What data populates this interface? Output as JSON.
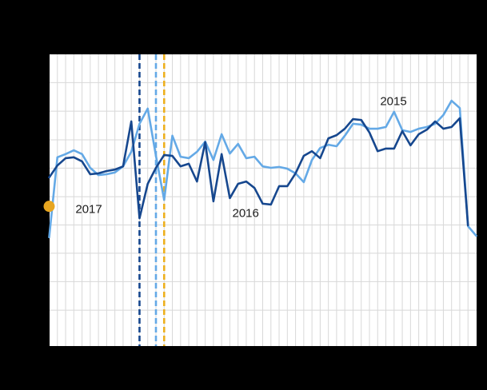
{
  "chart": {
    "background": "#000000",
    "plot_background": "#ffffff",
    "gridline_color": "#d8d8d8",
    "annotation_text_color": "#1c1c1c"
  },
  "chart_data": {
    "type": "line",
    "title": "",
    "x_axis": {
      "unit": "week",
      "min": 1,
      "max": 53,
      "tick_labels_visible": false,
      "gridline_every_week": true
    },
    "y_axis": {
      "unit": "relative level (0-100 of plot height; axis tick labels not visible in image)",
      "min": 0,
      "max": 100,
      "tick_labels_visible": false
    },
    "h_gridlines": [
      12.3,
      22.1,
      31.8,
      41.5,
      51.2,
      61.0,
      70.7,
      80.5,
      90.3
    ],
    "series": [
      {
        "name": "2015",
        "color": "#64a9e6",
        "type": "line",
        "start_week": 1,
        "values": [
          37.3,
          64.7,
          65.8,
          67.1,
          65.8,
          61.1,
          58.6,
          58.9,
          59.5,
          61.6,
          66.6,
          76.2,
          81.4,
          65.2,
          50.1,
          72.1,
          64.9,
          64.4,
          66.6,
          70.1,
          63.8,
          72.6,
          66.0,
          69.3,
          64.4,
          64.9,
          61.6,
          61.1,
          61.4,
          60.8,
          59.2,
          56.2,
          63.8,
          67.9,
          69.0,
          68.5,
          72.1,
          76.2,
          75.9,
          74.5,
          74.5,
          75.1,
          80.3,
          74.0,
          73.4,
          74.5,
          75.1,
          76.2,
          79.2,
          84.1,
          81.6,
          41.1,
          37.8
        ]
      },
      {
        "name": "2016",
        "color": "#16478e",
        "type": "line",
        "start_week": 1,
        "values": [
          57.8,
          61.9,
          64.4,
          64.7,
          63.3,
          58.9,
          59.2,
          60.0,
          60.5,
          61.6,
          77.0,
          43.8,
          55.6,
          61.1,
          65.5,
          65.2,
          61.6,
          62.5,
          56.4,
          69.9,
          49.6,
          65.8,
          50.7,
          55.6,
          56.4,
          54.2,
          48.8,
          48.5,
          54.8,
          54.8,
          59.2,
          65.2,
          66.8,
          64.4,
          71.2,
          72.3,
          74.5,
          77.8,
          77.5,
          73.2,
          66.8,
          67.7,
          67.7,
          73.7,
          68.8,
          72.6,
          74.2,
          77.0,
          74.5,
          75.1,
          78.1,
          41.4
        ]
      },
      {
        "name": "2017",
        "color": "#e7a51f",
        "type": "point",
        "start_week": 1,
        "values": [
          47.9
        ]
      }
    ],
    "dashed_vertical_lines": [
      {
        "week": 12,
        "color": "#16478e",
        "style": "dashed"
      },
      {
        "week": 14,
        "color": "#64a9e6",
        "style": "dashed"
      },
      {
        "week": 15,
        "color": "#edb01e",
        "style": "dashed"
      }
    ],
    "annotations": [
      {
        "text": "2015",
        "week": 41.3,
        "value": 83.8
      },
      {
        "text": "2016",
        "week": 23.3,
        "value": 45.5
      },
      {
        "text": "2017",
        "week": 4.2,
        "value": 46.8
      }
    ],
    "legend": "none (series labeled by in-plot annotations)"
  }
}
